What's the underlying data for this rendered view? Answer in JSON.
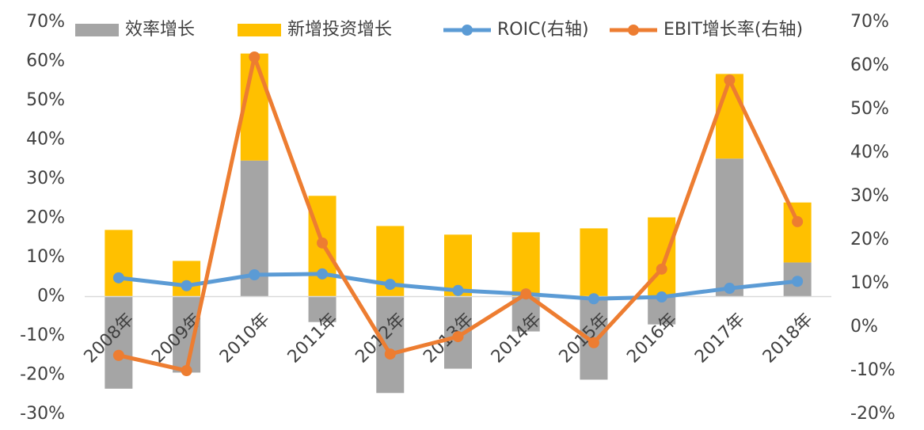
{
  "chart_data": {
    "type": "combo",
    "stacked": true,
    "categories": [
      "2008年",
      "2009年",
      "2010年",
      "2011年",
      "2012年",
      "2013年",
      "2014年",
      "2015年",
      "2016年",
      "2017年",
      "2018年"
    ],
    "series": [
      {
        "name": "效率增长",
        "type": "bar",
        "color": "#a5a5a5",
        "values": [
          -23.5,
          -19.4,
          34.7,
          -6.5,
          -24.6,
          -18.4,
          -8.9,
          -21.2,
          -7.1,
          35.2,
          8.7
        ]
      },
      {
        "name": "新增投资增长",
        "type": "bar",
        "color": "#ffc000",
        "values": [
          17.0,
          9.1,
          27.3,
          25.7,
          18.0,
          15.8,
          16.4,
          17.4,
          20.2,
          21.6,
          15.3
        ]
      },
      {
        "name": "ROIC(右轴)",
        "type": "line",
        "axis": "y2",
        "color": "#5b9bd5",
        "values": [
          11.3,
          9.5,
          12.0,
          12.2,
          9.8,
          8.4,
          7.6,
          6.5,
          6.9,
          8.9,
          10.5
        ]
      },
      {
        "name": "EBIT增长率(右轴)",
        "type": "line",
        "axis": "y2",
        "color": "#ed7d31",
        "values": [
          -6.5,
          -10.0,
          62.0,
          19.3,
          -6.2,
          -2.2,
          7.6,
          -3.6,
          13.3,
          56.7,
          24.2
        ]
      }
    ],
    "ylim": [
      -30,
      70
    ],
    "yticks": [
      {
        "value": -30,
        "label": "-30%"
      },
      {
        "value": -20,
        "label": "-20%"
      },
      {
        "value": -10,
        "label": "-10%"
      },
      {
        "value": 0,
        "label": "0%"
      },
      {
        "value": 10,
        "label": "10%"
      },
      {
        "value": 20,
        "label": "20%"
      },
      {
        "value": 30,
        "label": "30%"
      },
      {
        "value": 40,
        "label": "40%"
      },
      {
        "value": 50,
        "label": "50%"
      },
      {
        "value": 60,
        "label": "60%"
      },
      {
        "value": 70,
        "label": "70%"
      }
    ],
    "y2lim": [
      -20,
      70
    ],
    "y2ticks": [
      {
        "value": -20,
        "label": "-20%"
      },
      {
        "value": -10,
        "label": "-10%"
      },
      {
        "value": 0,
        "label": "0%"
      },
      {
        "value": 10,
        "label": "10%"
      },
      {
        "value": 20,
        "label": "20%"
      },
      {
        "value": 30,
        "label": "30%"
      },
      {
        "value": 40,
        "label": "40%"
      },
      {
        "value": 50,
        "label": "50%"
      },
      {
        "value": 60,
        "label": "60%"
      },
      {
        "value": 70,
        "label": "70%"
      }
    ],
    "legend": "top"
  }
}
